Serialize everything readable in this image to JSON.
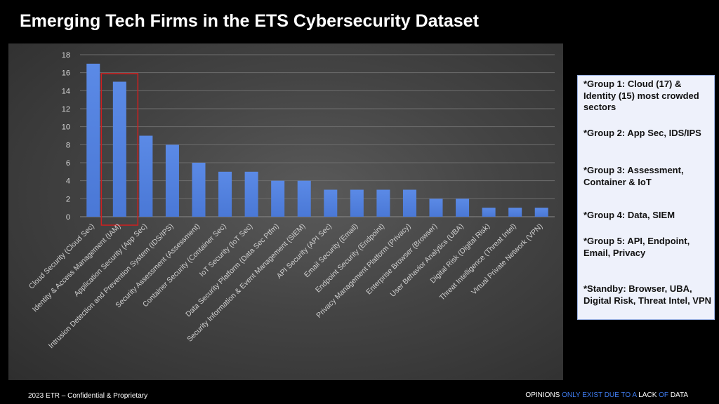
{
  "slide": {
    "title": "Emerging Tech Firms in the ETS Cybersecurity Dataset"
  },
  "chart_data": {
    "type": "bar",
    "categories": [
      "Cloud Security (Cloud Sec)",
      "Identity & Access Management (IAM)",
      "Application Security (App Sec)",
      "Intrusion Detection and Prevention System (IDS/IPS)",
      "Security Assessment (Assessment)",
      "Container Security (Container Sec)",
      "IoT Security (IoT Sec)",
      "Data Security Platform (Data Sec Ptfm)",
      "Security Information & Event Management (SIEM)",
      "API Security (API Sec)",
      "Email Security (Email)",
      "Endpoint Security (Endpoint)",
      "Privacy Management Platform (Privacy)",
      "Enterprise Browser (Browser)",
      "User Behavior Analytics (UBA)",
      "Digital Risk (Digital Risk)",
      "Threat Intelligence (Threat Intel)",
      "Virtual Private Network (VPN)"
    ],
    "values": [
      17,
      15,
      9,
      8,
      6,
      5,
      5,
      4,
      4,
      3,
      3,
      3,
      3,
      2,
      2,
      1,
      1,
      1
    ],
    "ylim": [
      0,
      18
    ],
    "yticks": [
      "0",
      "2",
      "4",
      "6",
      "8",
      "10",
      "12",
      "14",
      "16",
      "18"
    ],
    "grid": true,
    "highlighted_category": "Identity & Access Management (IAM)",
    "bar_color": "#4a78d6",
    "highlight_color": "#d01f1f"
  },
  "notes": [
    "*Group 1: Cloud (17) & Identity (15) most crowded sectors",
    "*Group 2: App Sec, IDS/IPS",
    "*Group 3: Assessment, Container & IoT",
    "*Group 4: Data, SIEM",
    "*Group 5: API, Endpoint, Email, Privacy",
    "*Standby: Browser, UBA, Digital Risk, Threat Intel, VPN"
  ],
  "footer": {
    "left": "2023 ETR – Confidential & Proprietary",
    "right_parts": [
      {
        "text": "OPINIONS ",
        "color": "#ffffff"
      },
      {
        "text": "ONLY EXIST DUE TO A ",
        "color": "#3f7cf0"
      },
      {
        "text": "LACK ",
        "color": "#ffffff"
      },
      {
        "text": "OF ",
        "color": "#3f7cf0"
      },
      {
        "text": "DATA",
        "color": "#ffffff"
      }
    ]
  }
}
